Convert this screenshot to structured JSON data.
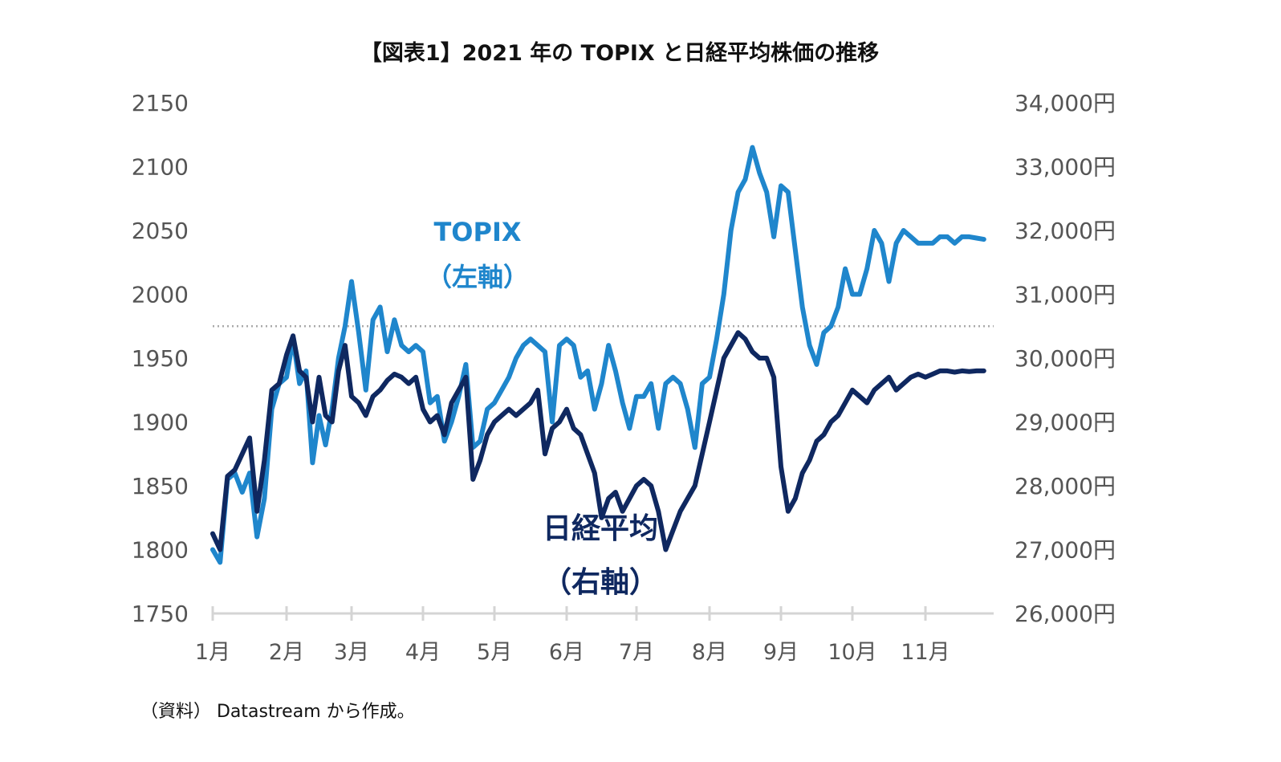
{
  "chart_data": {
    "type": "line",
    "title": "【図表1】2021 年の TOPIX と日経平均株価の推移",
    "source": "（資料） Datastream から作成。",
    "x_tick_labels": [
      "1月",
      "2月",
      "3月",
      "4月",
      "5月",
      "6月",
      "7月",
      "8月",
      "9月",
      "10月",
      "11月"
    ],
    "y_left": {
      "ticks": [
        "2150",
        "2100",
        "2050",
        "2000",
        "1950",
        "1900",
        "1850",
        "1800",
        "1750"
      ],
      "range": [
        1750,
        2150
      ]
    },
    "y_right": {
      "ticks": [
        "34,000円",
        "33,000円",
        "32,000円",
        "31,000円",
        "30,000円",
        "29,000円",
        "28,000円",
        "27,000円",
        "26,000円"
      ],
      "range": [
        26000,
        34000
      ]
    },
    "reference_line": {
      "value_left": 1975,
      "style": "dotted"
    },
    "series": [
      {
        "name": "TOPIX",
        "label_line1": "TOPIX",
        "label_line2": "（左軸）",
        "axis": "left",
        "color": "#1f86cc",
        "x": [
          0,
          0.1,
          0.2,
          0.3,
          0.4,
          0.5,
          0.6,
          0.7,
          0.8,
          0.9,
          1,
          1.1,
          1.2,
          1.3,
          1.4,
          1.5,
          1.6,
          1.7,
          1.8,
          1.9,
          2,
          2.1,
          2.2,
          2.3,
          2.4,
          2.5,
          2.6,
          2.7,
          2.8,
          2.9,
          3,
          3.1,
          3.2,
          3.3,
          3.4,
          3.5,
          3.6,
          3.7,
          3.8,
          3.9,
          4,
          4.1,
          4.2,
          4.3,
          4.4,
          4.5,
          4.6,
          4.7,
          4.8,
          4.9,
          5,
          5.1,
          5.2,
          5.3,
          5.4,
          5.5,
          5.6,
          5.7,
          5.8,
          5.9,
          6,
          6.1,
          6.2,
          6.3,
          6.4,
          6.5,
          6.6,
          6.7,
          6.8,
          6.9,
          7,
          7.1,
          7.2,
          7.3,
          7.4,
          7.5,
          7.6,
          7.7,
          7.8,
          7.9,
          8,
          8.1,
          8.2,
          8.3,
          8.4,
          8.5,
          8.6,
          8.7,
          8.8,
          8.9,
          9,
          9.1,
          9.2,
          9.3,
          9.4,
          9.5,
          9.6,
          9.7,
          9.8,
          9.9,
          10,
          10.1,
          10.2,
          10.3,
          10.4,
          10.5,
          10.6,
          10.7,
          10.8
        ],
        "values": [
          1800,
          1790,
          1855,
          1860,
          1845,
          1860,
          1810,
          1840,
          1910,
          1930,
          1935,
          1965,
          1930,
          1940,
          1868,
          1905,
          1882,
          1910,
          1950,
          1975,
          2010,
          1970,
          1925,
          1980,
          1990,
          1955,
          1980,
          1960,
          1955,
          1960,
          1955,
          1915,
          1920,
          1885,
          1900,
          1920,
          1945,
          1880,
          1885,
          1910,
          1915,
          1925,
          1935,
          1950,
          1960,
          1965,
          1960,
          1955,
          1900,
          1960,
          1965,
          1960,
          1935,
          1940,
          1910,
          1930,
          1960,
          1940,
          1915,
          1895,
          1920,
          1920,
          1930,
          1895,
          1930,
          1935,
          1930,
          1910,
          1880,
          1930,
          1935,
          1965,
          2000,
          2050,
          2080,
          2090,
          2115,
          2095,
          2080,
          2045,
          2085,
          2080,
          2035,
          1990,
          1960,
          1945,
          1970,
          1975,
          1990,
          2020,
          2000,
          2000,
          2020,
          2050,
          2040,
          2010,
          2040,
          2050,
          2045,
          2040,
          2040,
          2040,
          2045,
          2045,
          2040,
          2045,
          2045,
          2044,
          2043
        ]
      },
      {
        "name": "日経平均",
        "label_line1": "日経平均",
        "label_line2": "（右軸）",
        "axis": "right",
        "color": "#0f2860",
        "x": [
          0,
          0.1,
          0.2,
          0.3,
          0.4,
          0.5,
          0.6,
          0.7,
          0.8,
          0.9,
          1,
          1.1,
          1.2,
          1.3,
          1.4,
          1.5,
          1.6,
          1.7,
          1.8,
          1.9,
          2,
          2.1,
          2.2,
          2.3,
          2.4,
          2.5,
          2.6,
          2.7,
          2.8,
          2.9,
          3,
          3.1,
          3.2,
          3.3,
          3.4,
          3.5,
          3.6,
          3.7,
          3.8,
          3.9,
          4,
          4.1,
          4.2,
          4.3,
          4.4,
          4.5,
          4.6,
          4.7,
          4.8,
          4.9,
          5,
          5.1,
          5.2,
          5.3,
          5.4,
          5.5,
          5.6,
          5.7,
          5.8,
          5.9,
          6,
          6.1,
          6.2,
          6.3,
          6.4,
          6.5,
          6.6,
          6.7,
          6.8,
          6.9,
          7,
          7.1,
          7.2,
          7.3,
          7.4,
          7.5,
          7.6,
          7.7,
          7.8,
          7.9,
          8,
          8.1,
          8.2,
          8.3,
          8.4,
          8.5,
          8.6,
          8.7,
          8.8,
          8.9,
          9,
          9.1,
          9.2,
          9.3,
          9.4,
          9.5,
          9.6,
          9.7,
          9.8,
          9.9,
          10,
          10.1,
          10.2,
          10.3,
          10.4,
          10.5,
          10.6,
          10.7,
          10.8
        ],
        "values": [
          27250,
          27000,
          28150,
          28250,
          28500,
          28750,
          27600,
          28400,
          29500,
          29600,
          30050,
          30350,
          29800,
          29700,
          29000,
          29700,
          29100,
          29000,
          29800,
          30200,
          29400,
          29300,
          29100,
          29400,
          29500,
          29650,
          29750,
          29700,
          29600,
          29700,
          29200,
          29000,
          29100,
          28800,
          29300,
          29500,
          29700,
          28100,
          28400,
          28800,
          29000,
          29100,
          29200,
          29100,
          29200,
          29300,
          29500,
          28500,
          28900,
          29000,
          29200,
          28900,
          28800,
          28500,
          28200,
          27500,
          27800,
          27900,
          27600,
          27800,
          28000,
          28100,
          28000,
          27600,
          27000,
          27300,
          27600,
          27800,
          28000,
          28500,
          29000,
          29500,
          30000,
          30200,
          30400,
          30300,
          30100,
          30000,
          30000,
          29700,
          28300,
          27600,
          27800,
          28200,
          28400,
          28700,
          28800,
          29000,
          29100,
          29300,
          29500,
          29400,
          29300,
          29500,
          29600,
          29700,
          29500,
          29600,
          29700,
          29750,
          29700,
          29750,
          29800,
          29800,
          29780,
          29800,
          29790,
          29800,
          29800
        ]
      }
    ]
  }
}
